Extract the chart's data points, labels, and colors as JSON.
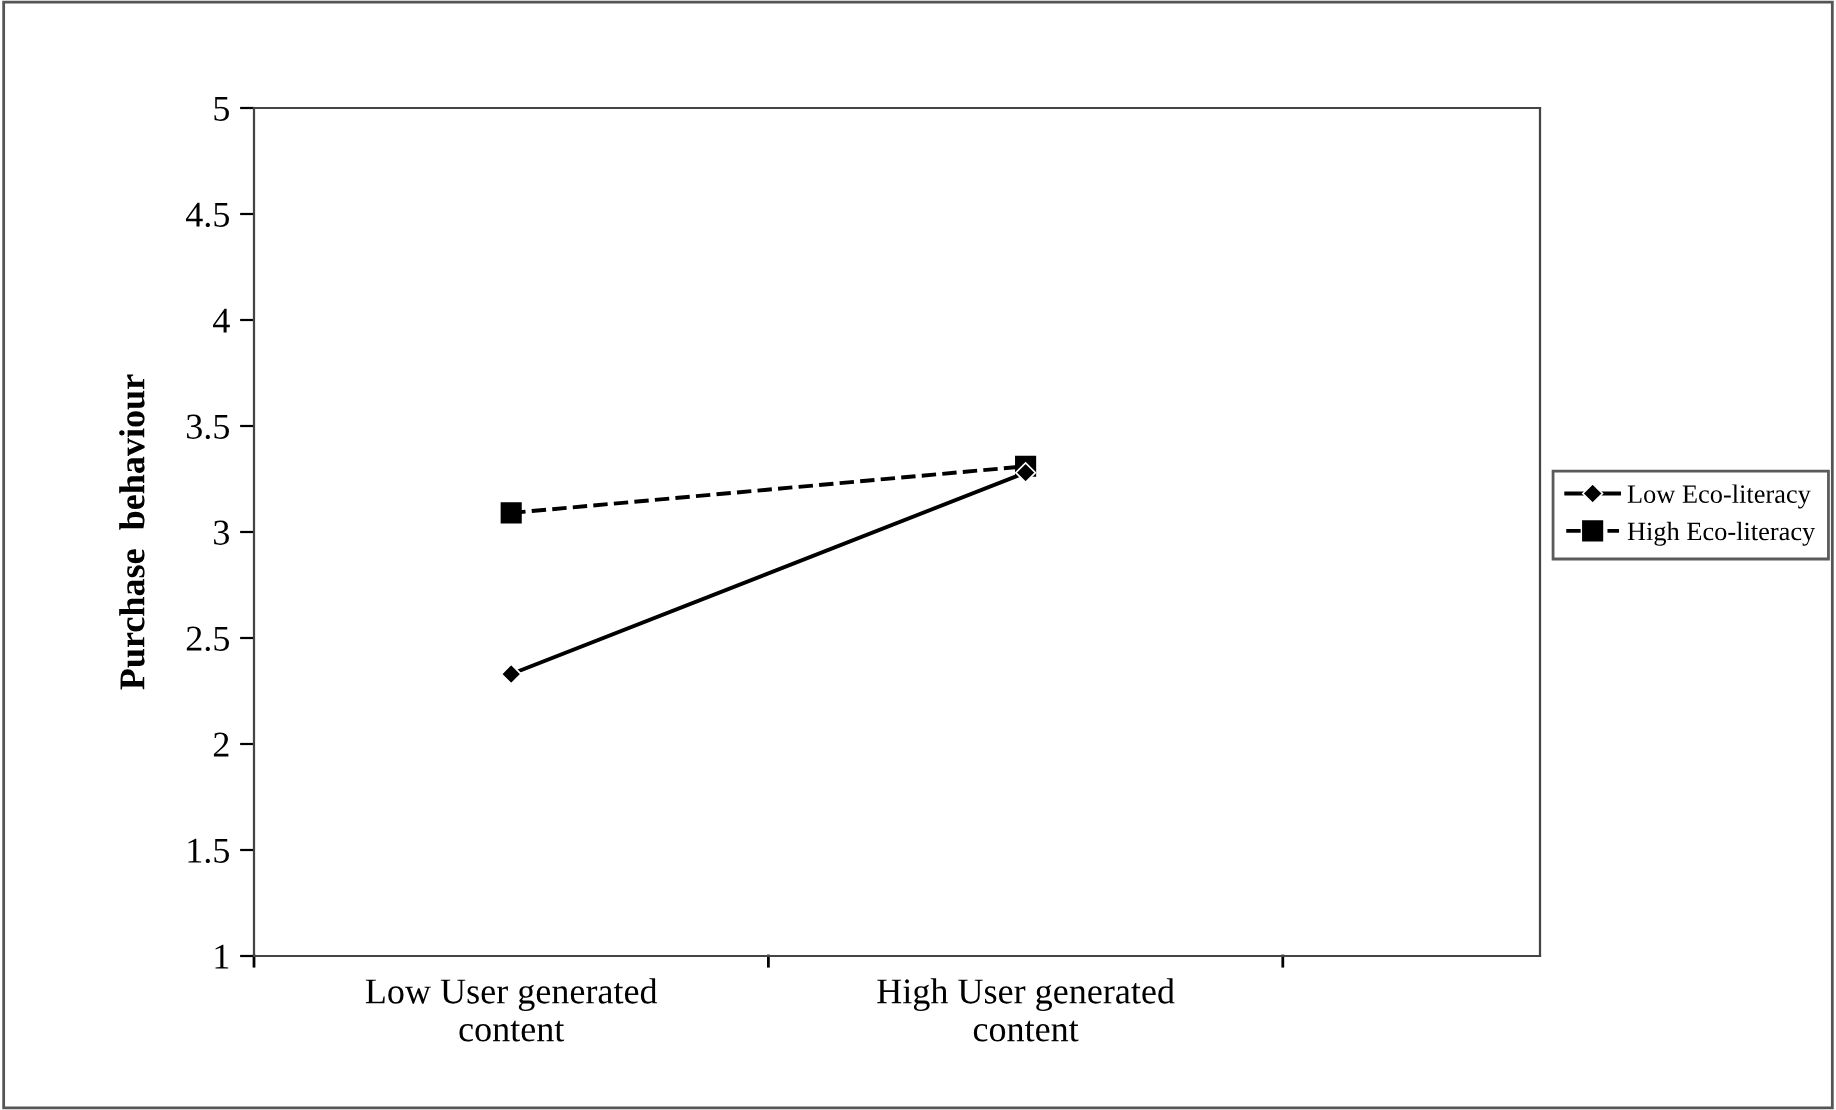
{
  "chart_data": {
    "type": "line",
    "ylabel": "Purchase  behaviour",
    "categories": [
      "Low User generated\ncontent",
      "High User generated\ncontent"
    ],
    "series": [
      {
        "name": "Low Eco-literacy",
        "color": "#000000",
        "values": [
          2.33,
          3.28
        ],
        "marker": "diamond",
        "line_style": "solid"
      },
      {
        "name": "High Eco-literacy",
        "color": "#000000",
        "values": [
          3.09,
          3.31
        ],
        "marker": "square",
        "line_style": "dashed"
      }
    ],
    "ylim": [
      1,
      5
    ],
    "yticks": [
      1,
      1.5,
      2,
      2.5,
      3,
      3.5,
      4,
      4.5,
      5
    ],
    "grid": false,
    "legend": "right"
  }
}
